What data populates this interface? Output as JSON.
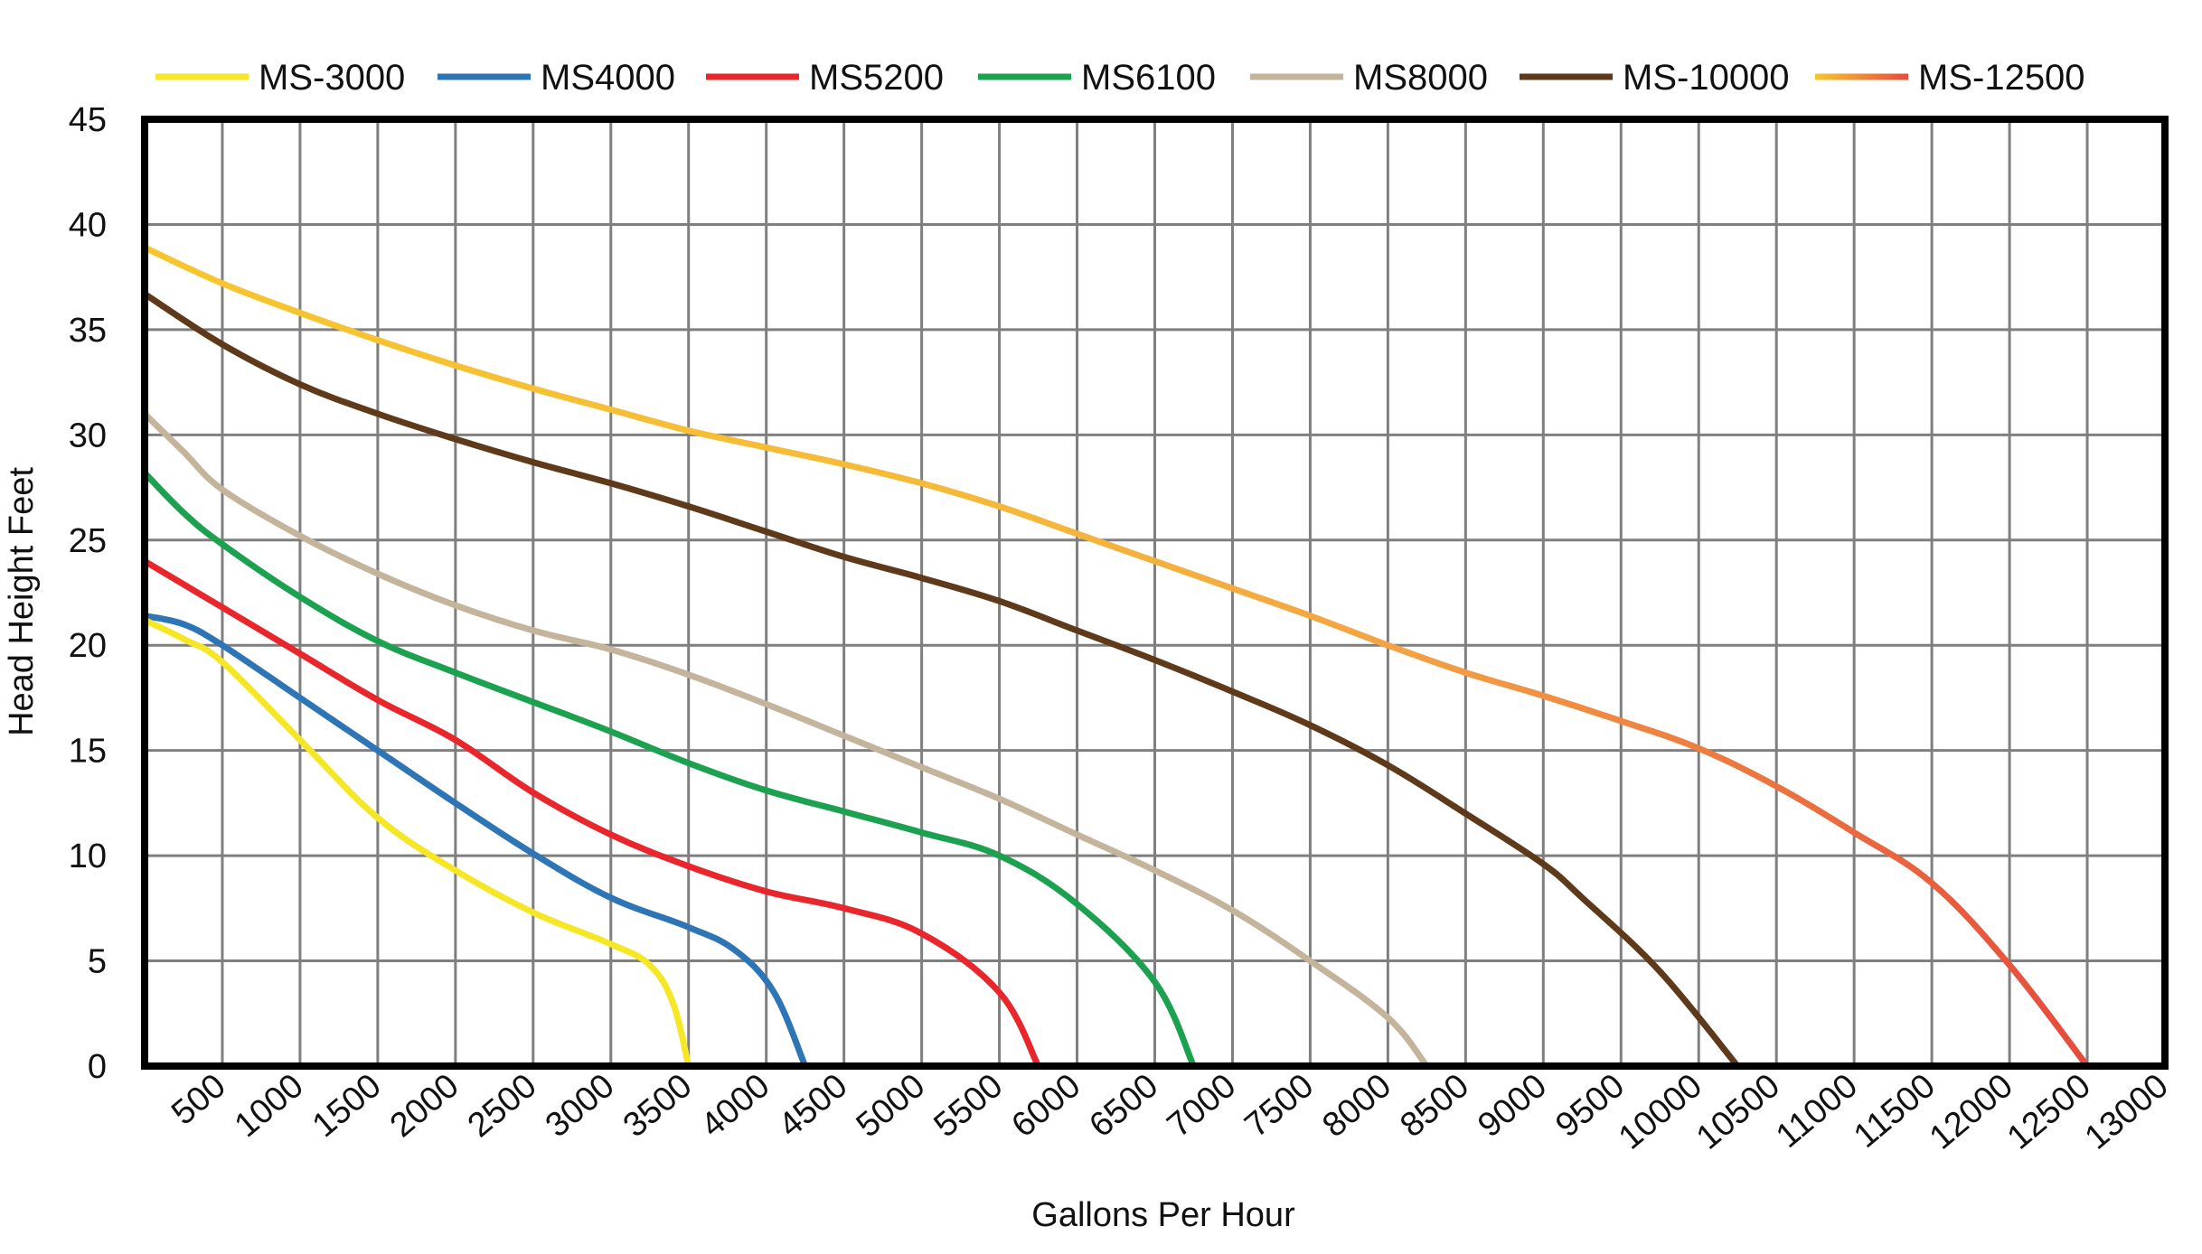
{
  "chart_data": {
    "type": "line",
    "title": "",
    "xlabel": "Gallons Per Hour",
    "ylabel": "Head Height Feet",
    "xlim": [
      0,
      13000
    ],
    "ylim": [
      0,
      45
    ],
    "x_ticks": [
      500,
      1000,
      1500,
      2000,
      2500,
      3000,
      3500,
      4000,
      4500,
      5000,
      5500,
      6000,
      6500,
      7000,
      7500,
      8000,
      8500,
      9000,
      9500,
      10000,
      10500,
      11000,
      11500,
      12000,
      12500,
      13000
    ],
    "y_ticks": [
      0,
      5,
      10,
      15,
      20,
      25,
      30,
      35,
      40,
      45
    ],
    "grid": true,
    "legend_position": "top",
    "series": [
      {
        "name": "MS-3000",
        "color": "#F5E626",
        "points": [
          [
            0,
            21.2
          ],
          [
            250,
            20.3
          ],
          [
            500,
            19.2
          ],
          [
            1000,
            15.5
          ],
          [
            1500,
            11.8
          ],
          [
            2000,
            9.3
          ],
          [
            2500,
            7.3
          ],
          [
            3000,
            5.8
          ],
          [
            3250,
            4.8
          ],
          [
            3400,
            3.0
          ],
          [
            3500,
            0.0
          ]
        ]
      },
      {
        "name": "MS4000",
        "color": "#2E75B6",
        "points": [
          [
            0,
            21.4
          ],
          [
            250,
            21.0
          ],
          [
            500,
            20.0
          ],
          [
            1000,
            17.5
          ],
          [
            1500,
            15.0
          ],
          [
            2000,
            12.5
          ],
          [
            2500,
            10.1
          ],
          [
            3000,
            8.0
          ],
          [
            3500,
            6.6
          ],
          [
            3800,
            5.5
          ],
          [
            4050,
            3.5
          ],
          [
            4250,
            0.0
          ]
        ]
      },
      {
        "name": "MS5200",
        "color": "#E8262B",
        "points": [
          [
            0,
            24.0
          ],
          [
            500,
            21.8
          ],
          [
            1000,
            19.6
          ],
          [
            1500,
            17.4
          ],
          [
            2000,
            15.5
          ],
          [
            2500,
            13.0
          ],
          [
            3000,
            11.0
          ],
          [
            3500,
            9.5
          ],
          [
            4000,
            8.3
          ],
          [
            4500,
            7.5
          ],
          [
            5000,
            6.3
          ],
          [
            5500,
            3.5
          ],
          [
            5750,
            0.0
          ]
        ]
      },
      {
        "name": "MS6100",
        "color": "#1CA150",
        "points": [
          [
            0,
            28.2
          ],
          [
            250,
            26.3
          ],
          [
            500,
            24.8
          ],
          [
            1000,
            22.3
          ],
          [
            1500,
            20.2
          ],
          [
            2000,
            18.7
          ],
          [
            2500,
            17.3
          ],
          [
            3000,
            15.9
          ],
          [
            3500,
            14.4
          ],
          [
            4000,
            13.1
          ],
          [
            4500,
            12.1
          ],
          [
            5000,
            11.1
          ],
          [
            5500,
            10.0
          ],
          [
            6000,
            7.7
          ],
          [
            6500,
            4.0
          ],
          [
            6750,
            0.0
          ]
        ]
      },
      {
        "name": "MS8000",
        "color": "#C4B49C",
        "points": [
          [
            0,
            31.0
          ],
          [
            250,
            29.2
          ],
          [
            500,
            27.4
          ],
          [
            1000,
            25.2
          ],
          [
            1500,
            23.4
          ],
          [
            2000,
            21.9
          ],
          [
            2500,
            20.7
          ],
          [
            3000,
            19.8
          ],
          [
            3500,
            18.6
          ],
          [
            4000,
            17.2
          ],
          [
            4500,
            15.7
          ],
          [
            5000,
            14.2
          ],
          [
            5500,
            12.7
          ],
          [
            6000,
            11.0
          ],
          [
            6500,
            9.3
          ],
          [
            7000,
            7.4
          ],
          [
            7500,
            5.0
          ],
          [
            8000,
            2.3
          ],
          [
            8250,
            0.0
          ]
        ]
      },
      {
        "name": "MS-10000",
        "color": "#5E3A1A",
        "points": [
          [
            0,
            36.7
          ],
          [
            500,
            34.3
          ],
          [
            1000,
            32.4
          ],
          [
            1500,
            31.0
          ],
          [
            2000,
            29.8
          ],
          [
            2500,
            28.7
          ],
          [
            3000,
            27.7
          ],
          [
            3500,
            26.6
          ],
          [
            4000,
            25.4
          ],
          [
            4500,
            24.2
          ],
          [
            5000,
            23.2
          ],
          [
            5500,
            22.1
          ],
          [
            6000,
            20.7
          ],
          [
            6500,
            19.3
          ],
          [
            7000,
            17.8
          ],
          [
            7500,
            16.2
          ],
          [
            8000,
            14.3
          ],
          [
            8500,
            12.0
          ],
          [
            9000,
            9.6
          ],
          [
            9250,
            8.0
          ],
          [
            9750,
            4.5
          ],
          [
            10250,
            0.0
          ]
        ]
      },
      {
        "name": "MS-12500",
        "color": "#F7C62F",
        "color_end": "#E64B3C",
        "points": [
          [
            0,
            38.9
          ],
          [
            500,
            37.2
          ],
          [
            1000,
            35.8
          ],
          [
            1500,
            34.5
          ],
          [
            2000,
            33.3
          ],
          [
            2500,
            32.2
          ],
          [
            3000,
            31.2
          ],
          [
            3500,
            30.2
          ],
          [
            4000,
            29.4
          ],
          [
            4500,
            28.6
          ],
          [
            5000,
            27.7
          ],
          [
            5500,
            26.6
          ],
          [
            6000,
            25.3
          ],
          [
            6500,
            24.0
          ],
          [
            7000,
            22.7
          ],
          [
            7500,
            21.4
          ],
          [
            8000,
            20.0
          ],
          [
            8500,
            18.7
          ],
          [
            9000,
            17.6
          ],
          [
            9500,
            16.4
          ],
          [
            10000,
            15.1
          ],
          [
            10500,
            13.3
          ],
          [
            11000,
            11.1
          ],
          [
            11500,
            8.7
          ],
          [
            12000,
            4.8
          ],
          [
            12500,
            0.0
          ]
        ]
      }
    ]
  }
}
